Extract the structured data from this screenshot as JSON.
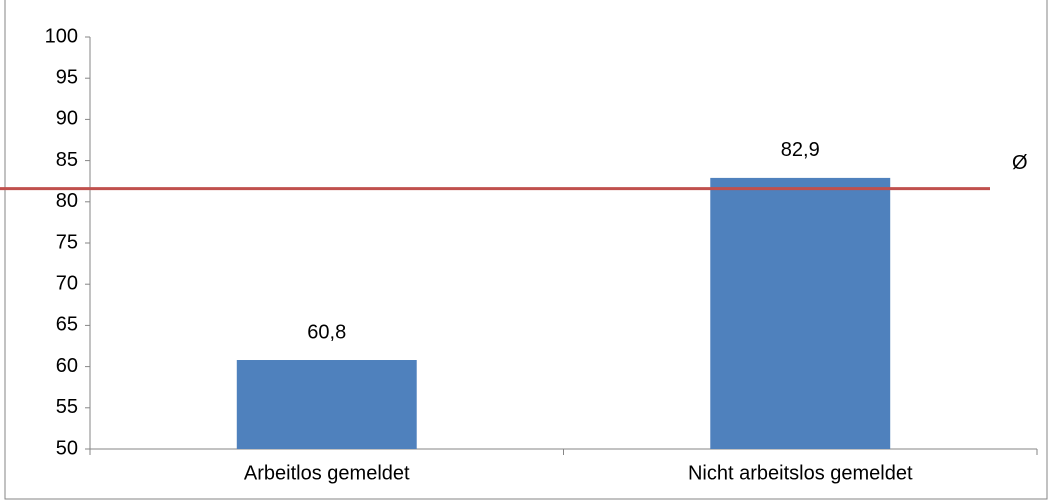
{
  "chart_data": {
    "type": "bar",
    "categories": [
      "Arbeitlos gemeldet",
      "Nicht arbeitslos gemeldet"
    ],
    "values": [
      60.8,
      82.9
    ],
    "value_labels": [
      "60,8",
      "82,9"
    ],
    "color": "#4f81bd",
    "ylim": [
      50,
      100
    ],
    "yticks": [
      50,
      55,
      60,
      65,
      70,
      75,
      80,
      85,
      90,
      95,
      100
    ],
    "reference_line": {
      "value": 81.6,
      "label": "Ø",
      "color": "#c0504d"
    }
  }
}
